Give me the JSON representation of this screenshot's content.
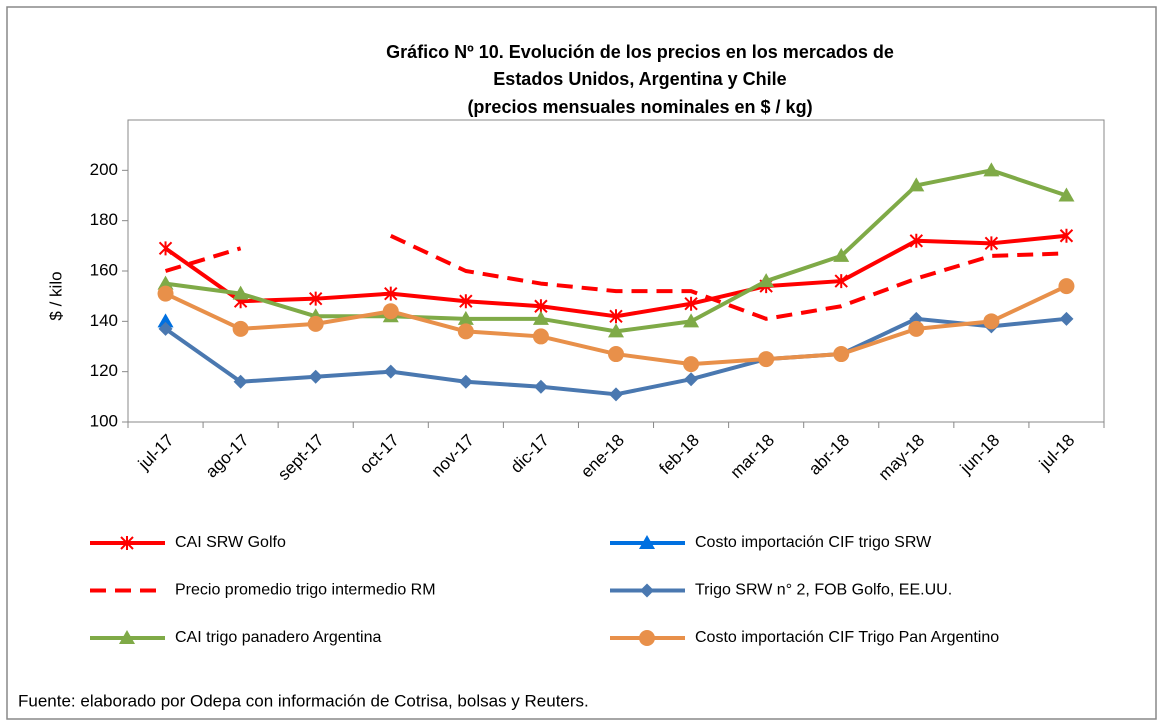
{
  "chart_data": {
    "type": "line",
    "title": [
      "Gráfico Nº 10. Evolución de los precios en los mercados de",
      "Estados Unidos, Argentina y Chile",
      "(precios mensuales nominales en $ / kg)"
    ],
    "ylabel": "$ / kilo",
    "footnote": "Fuente: elaborado por Odepa con información de Cotrisa, bolsas y Reuters.",
    "categories": [
      "jul-17",
      "ago-17",
      "sept-17",
      "oct-17",
      "nov-17",
      "dic-17",
      "ene-18",
      "feb-18",
      "mar-18",
      "abr-18",
      "may-18",
      "jun-18",
      "jul-18"
    ],
    "ylim": [
      100,
      220
    ],
    "yticks": [
      100,
      120,
      140,
      160,
      180,
      200
    ],
    "series": [
      {
        "name": "CAI SRW Golfo",
        "color": "#ff0000",
        "marker": "asterisk",
        "dash": false,
        "values": [
          169,
          148,
          149,
          151,
          148,
          146,
          142,
          147,
          154,
          156,
          172,
          171,
          174
        ]
      },
      {
        "name": "Costo importación CIF trigo SRW",
        "color": "#0070e0",
        "marker": "triangle",
        "dash": false,
        "values": [
          140,
          null,
          null,
          null,
          null,
          null,
          null,
          null,
          null,
          null,
          null,
          null,
          null
        ]
      },
      {
        "name": "Precio promedio trigo intermedio RM",
        "color": "#ff0000",
        "marker": "none",
        "dash": true,
        "values": [
          160,
          169,
          null,
          174,
          160,
          155,
          152,
          152,
          141,
          146,
          157,
          166,
          167
        ]
      },
      {
        "name": "Trigo SRW n° 2, FOB Golfo, EE.UU.",
        "color": "#4a78b0",
        "marker": "diamond",
        "dash": false,
        "values": [
          137,
          116,
          118,
          120,
          116,
          114,
          111,
          117,
          125,
          127,
          141,
          138,
          141
        ]
      },
      {
        "name": "CAI trigo panadero Argentina",
        "color": "#7faa47",
        "marker": "triangle",
        "dash": false,
        "values": [
          155,
          151,
          142,
          142,
          141,
          141,
          136,
          140,
          156,
          166,
          194,
          200,
          190
        ]
      },
      {
        "name": "Costo importación CIF Trigo Pan Argentino",
        "color": "#e8904a",
        "marker": "circle",
        "dash": false,
        "values": [
          151,
          137,
          139,
          144,
          136,
          134,
          127,
          123,
          125,
          127,
          137,
          140,
          154
        ]
      }
    ]
  }
}
